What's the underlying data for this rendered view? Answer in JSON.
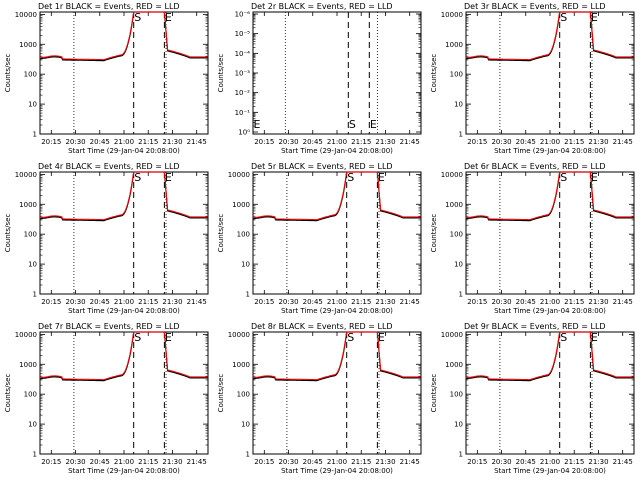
{
  "chart_data": [
    {
      "type": "line",
      "title": "Det 1r BLACK = Events, RED = LLD",
      "xlabel": "Start Time (29-Jan-04 20:08:00)",
      "ylabel": "Counts/sec",
      "yscale": "log",
      "ylim": [
        1,
        12000
      ],
      "y_ticks": [
        "1",
        "10",
        "100",
        "1000",
        "10000"
      ],
      "x_ticks": [
        "20:15",
        "20:30",
        "20:45",
        "21:00",
        "21:15",
        "21:30",
        "21:45"
      ],
      "markers": [
        {
          "label": "S"
        },
        {
          "label": "E"
        }
      ],
      "series": [
        {
          "name": "Events",
          "color": "#000000"
        },
        {
          "name": "LLD",
          "color": "#ff0000"
        }
      ]
    },
    {
      "type": "line",
      "title": "Det 2r BLACK = Events, RED = LLD",
      "xlabel": "Start Time (29-Jan-04 20:08:00)",
      "ylabel": "Counts/sec",
      "yscale": "log",
      "y_ticks": [
        "10⁰",
        "10⁻¹",
        "10⁻²",
        "10⁻³",
        "10⁻⁴",
        "10⁻⁵",
        "10⁻⁶"
      ],
      "x_ticks": [
        "20:15",
        "20:30",
        "20:45",
        "21:00",
        "21:15",
        "21:30",
        "21:45"
      ],
      "markers": [
        {
          "label": "E"
        },
        {
          "label": "S"
        },
        {
          "label": "E"
        }
      ],
      "series": []
    },
    {
      "type": "line",
      "title": "Det 3r BLACK = Events, RED = LLD",
      "xlabel": "Start Time (29-Jan-04 20:08:00)",
      "ylabel": "Counts/sec",
      "yscale": "log",
      "ylim": [
        1,
        12000
      ],
      "y_ticks": [
        "1",
        "10",
        "100",
        "1000",
        "10000"
      ],
      "x_ticks": [
        "20:15",
        "20:30",
        "20:45",
        "21:00",
        "21:15",
        "21:30",
        "21:45"
      ],
      "markers": [
        {
          "label": "S"
        },
        {
          "label": "E"
        }
      ],
      "series": [
        {
          "name": "Events",
          "color": "#000000"
        },
        {
          "name": "LLD",
          "color": "#ff0000"
        }
      ]
    },
    {
      "type": "line",
      "title": "Det 4r BLACK = Events, RED = LLD",
      "xlabel": "Start Time (29-Jan-04 20:08:00)",
      "ylabel": "Counts/sec",
      "yscale": "log",
      "ylim": [
        1,
        12000
      ],
      "y_ticks": [
        "1",
        "10",
        "100",
        "1000",
        "10000"
      ],
      "x_ticks": [
        "20:15",
        "20:30",
        "20:45",
        "21:00",
        "21:15",
        "21:30",
        "21:45"
      ],
      "markers": [
        {
          "label": "S"
        },
        {
          "label": "E"
        }
      ],
      "series": [
        {
          "name": "Events",
          "color": "#000000"
        },
        {
          "name": "LLD",
          "color": "#ff0000"
        }
      ]
    },
    {
      "type": "line",
      "title": "Det 5r BLACK = Events, RED = LLD",
      "xlabel": "Start Time (29-Jan-04 20:08:00)",
      "ylabel": "Counts/sec",
      "yscale": "log",
      "ylim": [
        1,
        12000
      ],
      "y_ticks": [
        "1",
        "10",
        "100",
        "1000",
        "10000"
      ],
      "x_ticks": [
        "20:15",
        "20:30",
        "20:45",
        "21:00",
        "21:15",
        "21:30",
        "21:45"
      ],
      "markers": [
        {
          "label": "S"
        },
        {
          "label": "E"
        }
      ],
      "series": [
        {
          "name": "Events",
          "color": "#000000"
        },
        {
          "name": "LLD",
          "color": "#ff0000"
        }
      ]
    },
    {
      "type": "line",
      "title": "Det 6r BLACK = Events, RED = LLD",
      "xlabel": "Start Time (29-Jan-04 20:08:00)",
      "ylabel": "Counts/sec",
      "yscale": "log",
      "ylim": [
        1,
        12000
      ],
      "y_ticks": [
        "1",
        "10",
        "100",
        "1000",
        "10000"
      ],
      "x_ticks": [
        "20:15",
        "20:30",
        "20:45",
        "21:00",
        "21:15",
        "21:30",
        "21:45"
      ],
      "markers": [
        {
          "label": "S"
        },
        {
          "label": "E"
        }
      ],
      "series": [
        {
          "name": "Events",
          "color": "#000000"
        },
        {
          "name": "LLD",
          "color": "#ff0000"
        }
      ]
    },
    {
      "type": "line",
      "title": "Det 7r BLACK = Events, RED = LLD",
      "xlabel": "Start Time (29-Jan-04 20:08:00)",
      "ylabel": "Counts/sec",
      "yscale": "log",
      "ylim": [
        1,
        12000
      ],
      "y_ticks": [
        "1",
        "10",
        "100",
        "1000",
        "10000"
      ],
      "x_ticks": [
        "20:15",
        "20:30",
        "20:45",
        "21:00",
        "21:15",
        "21:30",
        "21:45"
      ],
      "markers": [
        {
          "label": "S"
        },
        {
          "label": "E"
        }
      ],
      "series": [
        {
          "name": "Events",
          "color": "#000000"
        },
        {
          "name": "LLD",
          "color": "#ff0000"
        }
      ]
    },
    {
      "type": "line",
      "title": "Det 8r BLACK = Events, RED = LLD",
      "xlabel": "Start Time (29-Jan-04 20:08:00)",
      "ylabel": "Counts/sec",
      "yscale": "log",
      "ylim": [
        1,
        12000
      ],
      "y_ticks": [
        "1",
        "10",
        "100",
        "1000",
        "10000"
      ],
      "x_ticks": [
        "20:15",
        "20:30",
        "20:45",
        "21:00",
        "21:15",
        "21:30",
        "21:45"
      ],
      "markers": [
        {
          "label": "S"
        },
        {
          "label": "E"
        }
      ],
      "series": [
        {
          "name": "Events",
          "color": "#000000"
        },
        {
          "name": "LLD",
          "color": "#ff0000"
        }
      ]
    },
    {
      "type": "line",
      "title": "Det 9r BLACK = Events, RED = LLD",
      "xlabel": "Start Time (29-Jan-04 20:08:00)",
      "ylabel": "Counts/sec",
      "yscale": "log",
      "ylim": [
        1,
        12000
      ],
      "y_ticks": [
        "1",
        "10",
        "100",
        "1000",
        "10000"
      ],
      "x_ticks": [
        "20:15",
        "20:30",
        "20:45",
        "21:00",
        "21:15",
        "21:30",
        "21:45"
      ],
      "markers": [
        {
          "label": "S"
        },
        {
          "label": "E"
        }
      ],
      "series": [
        {
          "name": "Events",
          "color": "#000000"
        },
        {
          "name": "LLD",
          "color": "#ff0000"
        }
      ]
    }
  ]
}
